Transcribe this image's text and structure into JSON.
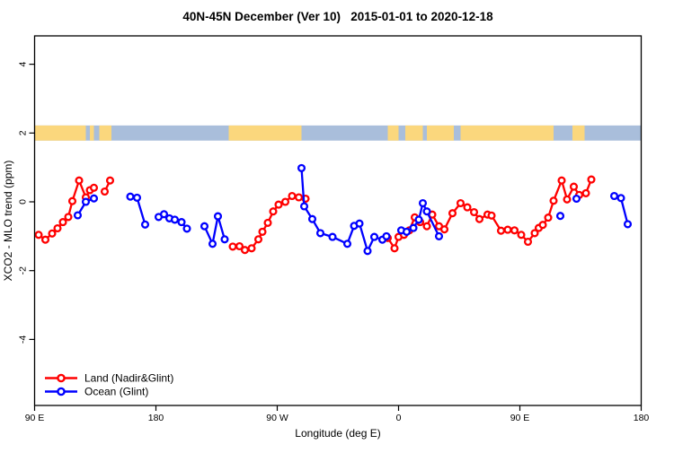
{
  "title": "40N-45N December (Ver 10)   2015-01-01 to 2020-12-18",
  "colors": {
    "land_series": "#ff0000",
    "ocean_series": "#0000ff",
    "map_land": "#fbd77d",
    "map_ocean": "#a9bedb",
    "axis": "#000000",
    "background": "#ffffff"
  },
  "legend": {
    "items": [
      {
        "label": "Land (Nadir&Glint)",
        "color": "#ff0000",
        "marker": "open-circle-line"
      },
      {
        "label": "Ocean (Glint)",
        "color": "#0000ff",
        "marker": "open-circle-line"
      }
    ]
  },
  "chart_data": {
    "type": "line",
    "title": "40N-45N December (Ver 10)   2015-01-01 to 2020-12-18",
    "xlabel": "Longitude (deg E)",
    "ylabel": "XCO2 - MLO trend (ppm)",
    "xlim": [
      90,
      540
    ],
    "ylim": [
      -5.9,
      4.8
    ],
    "grid": false,
    "legend_position": "bottom-left",
    "x_ticks": [
      {
        "lon": 90,
        "label": "90 E"
      },
      {
        "lon": 180,
        "label": "180"
      },
      {
        "lon": 270,
        "label": "90 W"
      },
      {
        "lon": 360,
        "label": "0"
      },
      {
        "lon": 450,
        "label": "90 E"
      },
      {
        "lon": 540,
        "label": "180"
      }
    ],
    "y_ticks": [
      {
        "v": -4,
        "label": "-4"
      },
      {
        "v": -2,
        "label": "-2"
      },
      {
        "v": 0,
        "label": "0"
      },
      {
        "v": 2,
        "label": "2"
      },
      {
        "v": 4,
        "label": "4"
      }
    ],
    "map_band": {
      "description": "world coastline strip for latitude band 40N-45N",
      "value_range": [
        1.78,
        2.22
      ],
      "ocean_color": "#a9bedb",
      "land_color": "#fbd77d",
      "land_segments_lon": [
        [
          90,
          128
        ],
        [
          131,
          134
        ],
        [
          138,
          147
        ],
        [
          234,
          288
        ],
        [
          352,
          360
        ],
        [
          365,
          378
        ],
        [
          381,
          401
        ],
        [
          406,
          475
        ],
        [
          489,
          498
        ]
      ]
    },
    "series": [
      {
        "name": "Land (Nadir&Glint)",
        "color": "#ff0000",
        "marker": "open-circle",
        "segments": [
          [
            [
              93,
              -0.96
            ],
            [
              98,
              -1.1
            ],
            [
              103,
              -0.92
            ],
            [
              107,
              -0.77
            ],
            [
              111,
              -0.59
            ],
            [
              115,
              -0.44
            ],
            [
              118,
              0.02
            ],
            [
              123,
              0.62
            ],
            [
              128,
              0.13
            ],
            [
              131,
              0.34
            ],
            [
              134,
              0.41
            ]
          ],
          [
            [
              142,
              0.3
            ],
            [
              146,
              0.62
            ]
          ],
          [
            [
              237,
              -1.3
            ],
            [
              242,
              -1.29
            ],
            [
              246,
              -1.4
            ],
            [
              251,
              -1.35
            ],
            [
              256,
              -1.09
            ],
            [
              259,
              -0.87
            ],
            [
              263,
              -0.61
            ],
            [
              267,
              -0.28
            ],
            [
              271,
              -0.08
            ],
            [
              276,
              0.0
            ],
            [
              281,
              0.17
            ],
            [
              286,
              0.13
            ],
            [
              291,
              0.09
            ]
          ],
          [
            [
              352,
              -1.05
            ],
            [
              357,
              -1.35
            ],
            [
              360,
              -1.02
            ],
            [
              364,
              -0.96
            ],
            [
              368,
              -0.83
            ],
            [
              372,
              -0.45
            ],
            [
              376,
              -0.59
            ],
            [
              381,
              -0.71
            ],
            [
              385,
              -0.37
            ],
            [
              390,
              -0.71
            ],
            [
              394,
              -0.8
            ],
            [
              400,
              -0.33
            ],
            [
              406,
              -0.04
            ],
            [
              411,
              -0.16
            ],
            [
              416,
              -0.3
            ],
            [
              420,
              -0.5
            ],
            [
              426,
              -0.37
            ],
            [
              429,
              -0.4
            ],
            [
              436,
              -0.84
            ],
            [
              441,
              -0.81
            ],
            [
              446,
              -0.83
            ],
            [
              451,
              -0.96
            ],
            [
              456,
              -1.16
            ],
            [
              461,
              -0.91
            ],
            [
              464,
              -0.76
            ],
            [
              467,
              -0.67
            ],
            [
              471,
              -0.46
            ],
            [
              475,
              0.03
            ],
            [
              481,
              0.62
            ],
            [
              485,
              0.07
            ],
            [
              490,
              0.44
            ],
            [
              494,
              0.2
            ],
            [
              499,
              0.25
            ],
            [
              503,
              0.65
            ]
          ]
        ]
      },
      {
        "name": "Ocean (Glint)",
        "color": "#0000ff",
        "marker": "open-circle",
        "segments": [
          [
            [
              122,
              -0.39
            ],
            [
              128,
              0.0
            ],
            [
              134,
              0.1
            ]
          ],
          [
            [
              161,
              0.15
            ],
            [
              166,
              0.12
            ],
            [
              172,
              -0.66
            ]
          ],
          [
            [
              182,
              -0.44
            ],
            [
              186,
              -0.36
            ],
            [
              190,
              -0.48
            ],
            [
              194,
              -0.52
            ],
            [
              199,
              -0.59
            ],
            [
              203,
              -0.78
            ]
          ],
          [
            [
              216,
              -0.71
            ],
            [
              222,
              -1.22
            ],
            [
              226,
              -0.42
            ],
            [
              231,
              -1.09
            ]
          ],
          [
            [
              288,
              0.98
            ],
            [
              290,
              -0.13
            ],
            [
              296,
              -0.5
            ],
            [
              302,
              -0.91
            ],
            [
              311,
              -1.02
            ],
            [
              322,
              -1.22
            ],
            [
              327,
              -0.7
            ],
            [
              331,
              -0.63
            ],
            [
              337,
              -1.43
            ],
            [
              342,
              -1.02
            ],
            [
              348,
              -1.1
            ],
            [
              351,
              -1.0
            ]
          ],
          [
            [
              362,
              -0.83
            ],
            [
              366,
              -0.87
            ],
            [
              371,
              -0.76
            ],
            [
              375,
              -0.52
            ],
            [
              378,
              -0.04
            ],
            [
              381,
              -0.28
            ],
            [
              390,
              -1.0
            ]
          ],
          [
            [
              480,
              -0.41
            ]
          ],
          [
            [
              492,
              0.09
            ]
          ],
          [
            [
              520,
              0.17
            ],
            [
              525,
              0.11
            ],
            [
              530,
              -0.65
            ]
          ]
        ]
      }
    ]
  }
}
